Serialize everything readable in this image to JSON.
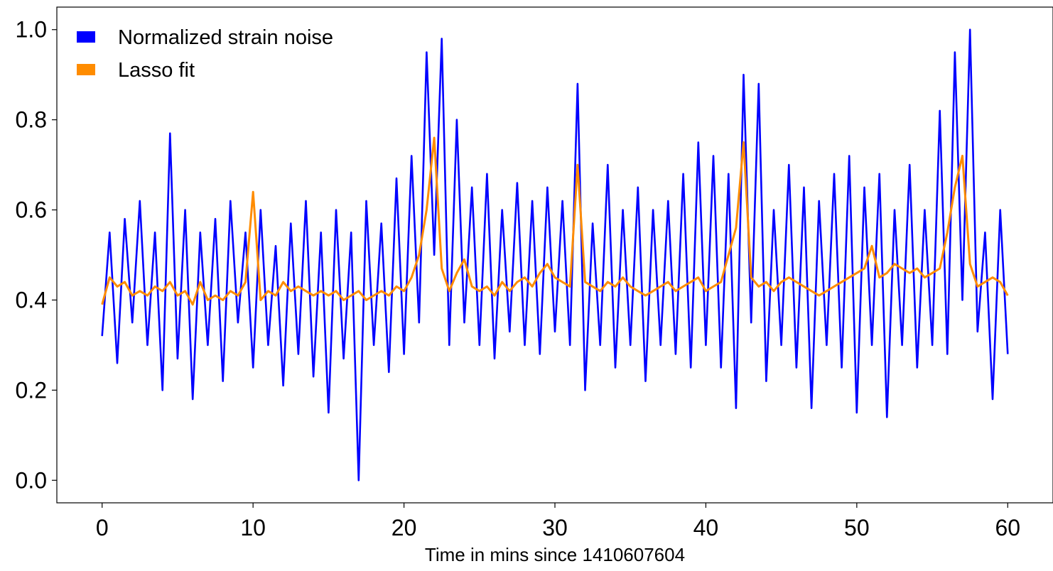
{
  "chart_data": {
    "type": "line",
    "title": "",
    "xlabel": "Time in mins since 1410607604",
    "ylabel": "",
    "xlim": [
      -3,
      63
    ],
    "ylim": [
      -0.05,
      1.05
    ],
    "x_ticks": [
      0,
      10,
      20,
      30,
      40,
      50,
      60
    ],
    "x_tick_labels": [
      "0",
      "10",
      "20",
      "30",
      "40",
      "50",
      "60"
    ],
    "y_ticks": [
      0.0,
      0.2,
      0.4,
      0.6,
      0.8,
      1.0
    ],
    "y_tick_labels": [
      "0.0",
      "0.2",
      "0.4",
      "0.6",
      "0.8",
      "1.0"
    ],
    "grid": false,
    "legend_position": "top-left",
    "series": [
      {
        "name": "Normalized strain noise",
        "color": "#0000ff",
        "x": [
          0,
          0.5,
          1,
          1.5,
          2,
          2.5,
          3,
          3.5,
          4,
          4.5,
          5,
          5.5,
          6,
          6.5,
          7,
          7.5,
          8,
          8.5,
          9,
          9.5,
          10,
          10.5,
          11,
          11.5,
          12,
          12.5,
          13,
          13.5,
          14,
          14.5,
          15,
          15.5,
          16,
          16.5,
          17,
          17.5,
          18,
          18.5,
          19,
          19.5,
          20,
          20.5,
          21,
          21.5,
          22,
          22.5,
          23,
          23.5,
          24,
          24.5,
          25,
          25.5,
          26,
          26.5,
          27,
          27.5,
          28,
          28.5,
          29,
          29.5,
          30,
          30.5,
          31,
          31.5,
          32,
          32.5,
          33,
          33.5,
          34,
          34.5,
          35,
          35.5,
          36,
          36.5,
          37,
          37.5,
          38,
          38.5,
          39,
          39.5,
          40,
          40.5,
          41,
          41.5,
          42,
          42.5,
          43,
          43.5,
          44,
          44.5,
          45,
          45.5,
          46,
          46.5,
          47,
          47.5,
          48,
          48.5,
          49,
          49.5,
          50,
          50.5,
          51,
          51.5,
          52,
          52.5,
          53,
          53.5,
          54,
          54.5,
          55,
          55.5,
          56,
          56.5,
          57,
          57.5,
          58,
          58.5,
          59,
          59.5,
          60
        ],
        "y": [
          0.32,
          0.55,
          0.26,
          0.58,
          0.35,
          0.62,
          0.3,
          0.55,
          0.2,
          0.77,
          0.27,
          0.6,
          0.18,
          0.55,
          0.3,
          0.58,
          0.22,
          0.62,
          0.35,
          0.55,
          0.25,
          0.6,
          0.3,
          0.52,
          0.21,
          0.57,
          0.28,
          0.62,
          0.23,
          0.55,
          0.15,
          0.6,
          0.27,
          0.55,
          0.0,
          0.62,
          0.3,
          0.57,
          0.24,
          0.67,
          0.28,
          0.72,
          0.35,
          0.95,
          0.5,
          0.98,
          0.3,
          0.8,
          0.35,
          0.65,
          0.3,
          0.68,
          0.27,
          0.6,
          0.33,
          0.66,
          0.3,
          0.62,
          0.28,
          0.65,
          0.33,
          0.62,
          0.3,
          0.88,
          0.2,
          0.57,
          0.3,
          0.7,
          0.25,
          0.6,
          0.3,
          0.65,
          0.22,
          0.6,
          0.3,
          0.62,
          0.28,
          0.68,
          0.25,
          0.75,
          0.3,
          0.72,
          0.25,
          0.68,
          0.16,
          0.9,
          0.35,
          0.88,
          0.22,
          0.6,
          0.3,
          0.7,
          0.25,
          0.65,
          0.16,
          0.62,
          0.3,
          0.68,
          0.25,
          0.72,
          0.15,
          0.65,
          0.3,
          0.68,
          0.14,
          0.6,
          0.3,
          0.7,
          0.25,
          0.6,
          0.3,
          0.82,
          0.28,
          0.95,
          0.4,
          1.0,
          0.33,
          0.55,
          0.18,
          0.6,
          0.28
        ],
        "note": "approximate"
      },
      {
        "name": "Lasso fit",
        "color": "#ff8c00",
        "x": [
          0,
          0.5,
          1,
          1.5,
          2,
          2.5,
          3,
          3.5,
          4,
          4.5,
          5,
          5.5,
          6,
          6.5,
          7,
          7.5,
          8,
          8.5,
          9,
          9.5,
          10,
          10.5,
          11,
          11.5,
          12,
          12.5,
          13,
          13.5,
          14,
          14.5,
          15,
          15.5,
          16,
          16.5,
          17,
          17.5,
          18,
          18.5,
          19,
          19.5,
          20,
          20.5,
          21,
          21.5,
          22,
          22.5,
          23,
          23.5,
          24,
          24.5,
          25,
          25.5,
          26,
          26.5,
          27,
          27.5,
          28,
          28.5,
          29,
          29.5,
          30,
          30.5,
          31,
          31.5,
          32,
          32.5,
          33,
          33.5,
          34,
          34.5,
          35,
          35.5,
          36,
          36.5,
          37,
          37.5,
          38,
          38.5,
          39,
          39.5,
          40,
          40.5,
          41,
          41.5,
          42,
          42.5,
          43,
          43.5,
          44,
          44.5,
          45,
          45.5,
          46,
          46.5,
          47,
          47.5,
          48,
          48.5,
          49,
          49.5,
          50,
          50.5,
          51,
          51.5,
          52,
          52.5,
          53,
          53.5,
          54,
          54.5,
          55,
          55.5,
          56,
          56.5,
          57,
          57.5,
          58,
          58.5,
          59,
          59.5,
          60
        ],
        "y": [
          0.39,
          0.45,
          0.43,
          0.44,
          0.41,
          0.42,
          0.41,
          0.43,
          0.42,
          0.44,
          0.41,
          0.42,
          0.39,
          0.44,
          0.4,
          0.41,
          0.4,
          0.42,
          0.41,
          0.44,
          0.64,
          0.4,
          0.42,
          0.41,
          0.44,
          0.42,
          0.43,
          0.42,
          0.41,
          0.42,
          0.41,
          0.42,
          0.4,
          0.41,
          0.42,
          0.4,
          0.41,
          0.42,
          0.41,
          0.43,
          0.42,
          0.45,
          0.5,
          0.6,
          0.76,
          0.47,
          0.42,
          0.46,
          0.49,
          0.43,
          0.42,
          0.43,
          0.41,
          0.44,
          0.42,
          0.44,
          0.45,
          0.43,
          0.46,
          0.48,
          0.45,
          0.44,
          0.43,
          0.7,
          0.44,
          0.43,
          0.42,
          0.44,
          0.43,
          0.45,
          0.43,
          0.42,
          0.41,
          0.42,
          0.43,
          0.44,
          0.42,
          0.43,
          0.44,
          0.45,
          0.42,
          0.43,
          0.44,
          0.5,
          0.56,
          0.75,
          0.45,
          0.43,
          0.44,
          0.42,
          0.44,
          0.45,
          0.44,
          0.43,
          0.42,
          0.41,
          0.42,
          0.43,
          0.44,
          0.45,
          0.46,
          0.47,
          0.52,
          0.45,
          0.46,
          0.48,
          0.47,
          0.46,
          0.47,
          0.45,
          0.46,
          0.47,
          0.55,
          0.65,
          0.72,
          0.48,
          0.43,
          0.44,
          0.45,
          0.44,
          0.41
        ],
        "note": "approximate"
      }
    ]
  }
}
